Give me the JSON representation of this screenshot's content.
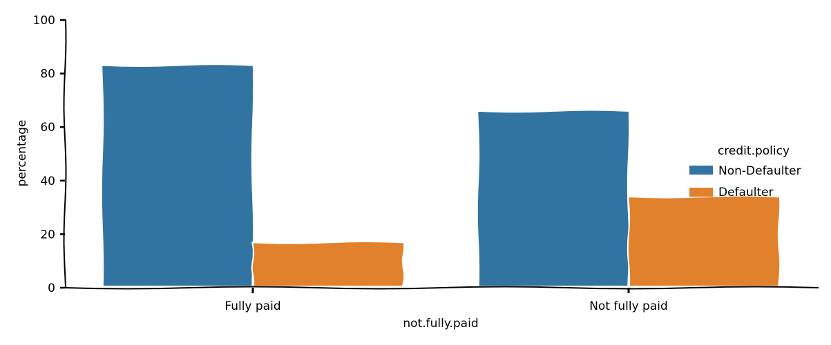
{
  "chart_data": {
    "type": "bar",
    "title": "",
    "xlabel": "not.fully.paid",
    "ylabel": "percentage",
    "categories": [
      "Fully paid",
      "Not fully paid"
    ],
    "series": [
      {
        "name": "Non-Defaulter",
        "values": [
          83.1,
          66.0
        ],
        "color": "#3274a1"
      },
      {
        "name": "Defaulter",
        "values": [
          16.9,
          34.0
        ],
        "color": "#e1812c"
      }
    ],
    "ylim": [
      0,
      100
    ],
    "yticks": [
      0,
      20,
      40,
      60,
      80,
      100
    ],
    "grid": false,
    "legend": {
      "title": "credit.policy",
      "placement": "right"
    }
  }
}
